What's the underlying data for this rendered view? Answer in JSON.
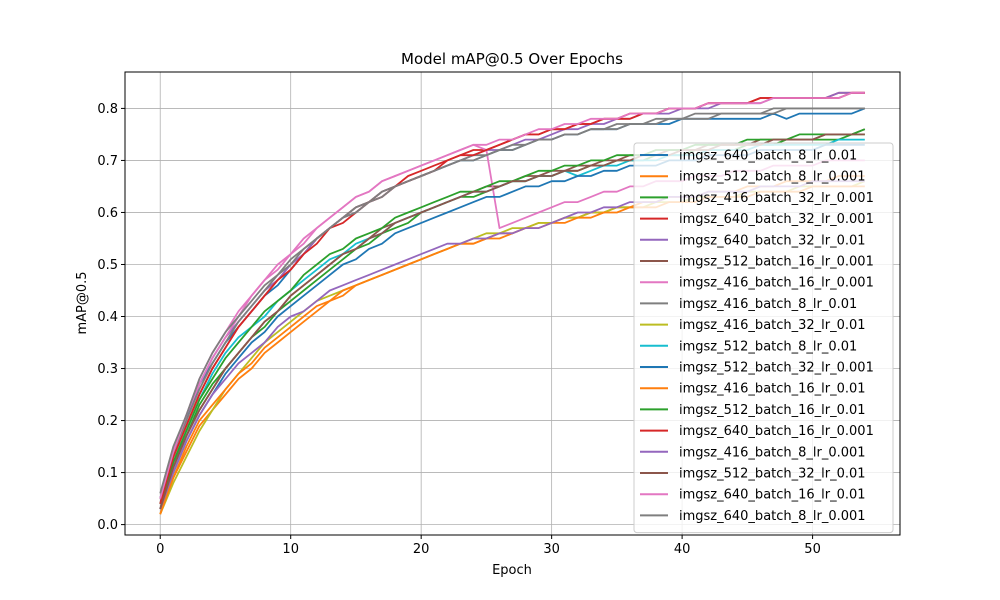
{
  "chart_data": {
    "type": "line",
    "title": "Model mAP@0.5 Over Epochs",
    "xlabel": "Epoch",
    "ylabel": "mAP@0.5",
    "xlim": [
      -2.7,
      56.7
    ],
    "ylim": [
      -0.02,
      0.87
    ],
    "xticks": [
      0,
      10,
      20,
      30,
      40,
      50
    ],
    "yticks": [
      0.0,
      0.1,
      0.2,
      0.3,
      0.4,
      0.5,
      0.6,
      0.7,
      0.8
    ],
    "grid": true,
    "legend_position": "lower-right",
    "x": [
      0,
      1,
      2,
      3,
      4,
      5,
      6,
      7,
      8,
      9,
      10,
      11,
      12,
      13,
      14,
      15,
      16,
      17,
      18,
      19,
      20,
      21,
      22,
      23,
      24,
      25,
      26,
      27,
      28,
      29,
      30,
      31,
      32,
      33,
      34,
      35,
      36,
      37,
      38,
      39,
      40,
      41,
      42,
      43,
      44,
      45,
      46,
      47,
      48,
      49,
      50,
      51,
      52,
      53,
      54
    ],
    "series": [
      {
        "name": "imgsz_640_batch_8_lr_0.01",
        "color": "#1f77b4",
        "values": [
          0.05,
          0.14,
          0.2,
          0.27,
          0.31,
          0.35,
          0.38,
          0.41,
          0.44,
          0.46,
          0.49,
          0.52,
          0.55,
          0.57,
          0.59,
          0.61,
          0.62,
          0.64,
          0.65,
          0.66,
          0.67,
          0.68,
          0.69,
          0.7,
          0.7,
          0.71,
          0.72,
          0.72,
          0.73,
          0.74,
          0.74,
          0.75,
          0.75,
          0.76,
          0.76,
          0.76,
          0.77,
          0.77,
          0.77,
          0.77,
          0.78,
          0.78,
          0.78,
          0.78,
          0.78,
          0.78,
          0.78,
          0.79,
          0.78,
          0.79,
          0.79,
          0.79,
          0.79,
          0.79,
          0.8
        ]
      },
      {
        "name": "imgsz_512_batch_8_lr_0.001",
        "color": "#ff7f0e",
        "values": [
          0.02,
          0.09,
          0.14,
          0.19,
          0.22,
          0.25,
          0.28,
          0.3,
          0.33,
          0.35,
          0.37,
          0.39,
          0.41,
          0.43,
          0.44,
          0.46,
          0.47,
          0.48,
          0.49,
          0.5,
          0.51,
          0.52,
          0.53,
          0.54,
          0.54,
          0.55,
          0.56,
          0.56,
          0.57,
          0.58,
          0.58,
          0.59,
          0.59,
          0.6,
          0.6,
          0.61,
          0.61,
          0.62,
          0.62,
          0.63,
          0.63,
          0.63,
          0.64,
          0.64,
          0.64,
          0.65,
          0.65,
          0.65,
          0.66,
          0.66,
          0.66,
          0.66,
          0.67,
          0.67,
          0.67
        ]
      },
      {
        "name": "imgsz_416_batch_32_lr_0.001",
        "color": "#2ca02c",
        "values": [
          0.03,
          0.11,
          0.17,
          0.23,
          0.27,
          0.3,
          0.33,
          0.36,
          0.38,
          0.41,
          0.43,
          0.45,
          0.47,
          0.49,
          0.51,
          0.53,
          0.54,
          0.56,
          0.57,
          0.58,
          0.6,
          0.61,
          0.62,
          0.63,
          0.63,
          0.64,
          0.65,
          0.66,
          0.66,
          0.67,
          0.67,
          0.68,
          0.68,
          0.69,
          0.69,
          0.7,
          0.7,
          0.7,
          0.71,
          0.71,
          0.71,
          0.72,
          0.72,
          0.72,
          0.72,
          0.73,
          0.73,
          0.73,
          0.74,
          0.74,
          0.74,
          0.74,
          0.74,
          0.75,
          0.75
        ]
      },
      {
        "name": "imgsz_640_batch_32_lr_0.001",
        "color": "#d62728",
        "values": [
          0.04,
          0.13,
          0.19,
          0.25,
          0.3,
          0.34,
          0.38,
          0.41,
          0.44,
          0.47,
          0.49,
          0.52,
          0.55,
          0.57,
          0.59,
          0.61,
          0.62,
          0.64,
          0.65,
          0.67,
          0.68,
          0.69,
          0.7,
          0.71,
          0.72,
          0.72,
          0.73,
          0.74,
          0.75,
          0.75,
          0.76,
          0.76,
          0.77,
          0.77,
          0.78,
          0.78,
          0.79,
          0.79,
          0.79,
          0.8,
          0.8,
          0.8,
          0.81,
          0.81,
          0.81,
          0.81,
          0.82,
          0.82,
          0.82,
          0.82,
          0.82,
          0.82,
          0.83,
          0.83,
          0.83
        ]
      },
      {
        "name": "imgsz_640_batch_32_lr_0.01",
        "color": "#9467bd",
        "values": [
          0.05,
          0.14,
          0.21,
          0.27,
          0.32,
          0.36,
          0.39,
          0.42,
          0.45,
          0.47,
          0.5,
          0.52,
          0.55,
          0.57,
          0.59,
          0.6,
          0.62,
          0.63,
          0.65,
          0.66,
          0.67,
          0.68,
          0.69,
          0.7,
          0.71,
          0.72,
          0.72,
          0.73,
          0.74,
          0.74,
          0.75,
          0.76,
          0.76,
          0.77,
          0.77,
          0.78,
          0.78,
          0.79,
          0.79,
          0.79,
          0.8,
          0.8,
          0.8,
          0.81,
          0.81,
          0.81,
          0.81,
          0.82,
          0.82,
          0.82,
          0.82,
          0.82,
          0.83,
          0.83,
          0.83
        ]
      },
      {
        "name": "imgsz_512_batch_16_lr_0.001",
        "color": "#8c564b",
        "values": [
          0.03,
          0.12,
          0.17,
          0.22,
          0.26,
          0.3,
          0.33,
          0.36,
          0.39,
          0.41,
          0.44,
          0.46,
          0.48,
          0.5,
          0.52,
          0.53,
          0.55,
          0.57,
          0.58,
          0.59,
          0.6,
          0.61,
          0.62,
          0.63,
          0.64,
          0.65,
          0.65,
          0.66,
          0.67,
          0.67,
          0.68,
          0.68,
          0.69,
          0.69,
          0.7,
          0.7,
          0.71,
          0.71,
          0.71,
          0.72,
          0.72,
          0.72,
          0.73,
          0.73,
          0.73,
          0.73,
          0.74,
          0.74,
          0.74,
          0.74,
          0.74,
          0.75,
          0.75,
          0.75,
          0.76
        ]
      },
      {
        "name": "imgsz_416_batch_16_lr_0.001",
        "color": "#e377c2",
        "values": [
          0.05,
          0.14,
          0.21,
          0.27,
          0.32,
          0.36,
          0.4,
          0.44,
          0.47,
          0.49,
          0.52,
          0.54,
          0.57,
          0.59,
          0.61,
          0.63,
          0.64,
          0.66,
          0.67,
          0.68,
          0.69,
          0.7,
          0.71,
          0.72,
          0.73,
          0.72,
          0.57,
          0.58,
          0.59,
          0.6,
          0.61,
          0.62,
          0.62,
          0.63,
          0.64,
          0.64,
          0.65,
          0.65,
          0.66,
          0.66,
          0.66,
          0.67,
          0.67,
          0.67,
          0.68,
          0.68,
          0.68,
          0.69,
          0.69,
          0.69,
          0.69,
          0.7,
          0.7,
          0.7,
          0.7
        ]
      },
      {
        "name": "imgsz_416_batch_8_lr_0.01",
        "color": "#7f7f7f",
        "values": [
          0.05,
          0.14,
          0.2,
          0.26,
          0.31,
          0.35,
          0.39,
          0.42,
          0.45,
          0.48,
          0.5,
          0.53,
          0.55,
          0.57,
          0.59,
          0.61,
          0.62,
          0.64,
          0.65,
          0.66,
          0.67,
          0.68,
          0.69,
          0.7,
          0.71,
          0.71,
          0.72,
          0.73,
          0.73,
          0.74,
          0.74,
          0.75,
          0.75,
          0.76,
          0.76,
          0.77,
          0.77,
          0.77,
          0.78,
          0.78,
          0.78,
          0.79,
          0.79,
          0.79,
          0.79,
          0.79,
          0.79,
          0.8,
          0.8,
          0.8,
          0.8,
          0.8,
          0.8,
          0.8,
          0.8
        ]
      },
      {
        "name": "imgsz_416_batch_32_lr_0.01",
        "color": "#bcbd22",
        "values": [
          0.02,
          0.08,
          0.13,
          0.18,
          0.22,
          0.26,
          0.29,
          0.32,
          0.35,
          0.37,
          0.39,
          0.41,
          0.43,
          0.44,
          0.45,
          0.46,
          0.47,
          0.48,
          0.49,
          0.5,
          0.51,
          0.52,
          0.53,
          0.54,
          0.55,
          0.56,
          0.56,
          0.57,
          0.57,
          0.58,
          0.58,
          0.59,
          0.59,
          0.6,
          0.6,
          0.61,
          0.61,
          0.61,
          0.62,
          0.62,
          0.62,
          0.63,
          0.63,
          0.63,
          0.63,
          0.64,
          0.64,
          0.64,
          0.64,
          0.65,
          0.65,
          0.65,
          0.65,
          0.65,
          0.66
        ]
      },
      {
        "name": "imgsz_512_batch_8_lr_0.01",
        "color": "#17becf",
        "values": [
          0.04,
          0.12,
          0.18,
          0.24,
          0.29,
          0.33,
          0.36,
          0.38,
          0.4,
          0.43,
          0.45,
          0.47,
          0.49,
          0.51,
          0.52,
          0.54,
          0.55,
          0.56,
          0.58,
          0.59,
          0.6,
          0.61,
          0.62,
          0.63,
          0.64,
          0.64,
          0.65,
          0.66,
          0.66,
          0.67,
          0.67,
          0.68,
          0.67,
          0.68,
          0.69,
          0.69,
          0.7,
          0.7,
          0.7,
          0.71,
          0.71,
          0.71,
          0.72,
          0.72,
          0.72,
          0.72,
          0.73,
          0.73,
          0.73,
          0.73,
          0.73,
          0.73,
          0.74,
          0.74,
          0.74
        ]
      },
      {
        "name": "imgsz_512_batch_32_lr_0.001",
        "color": "#1f77b4",
        "values": [
          0.03,
          0.1,
          0.16,
          0.21,
          0.25,
          0.29,
          0.32,
          0.35,
          0.37,
          0.4,
          0.42,
          0.44,
          0.46,
          0.48,
          0.5,
          0.51,
          0.53,
          0.54,
          0.56,
          0.57,
          0.58,
          0.59,
          0.6,
          0.61,
          0.62,
          0.63,
          0.63,
          0.64,
          0.65,
          0.65,
          0.66,
          0.66,
          0.67,
          0.67,
          0.68,
          0.68,
          0.69,
          0.69,
          0.69,
          0.7,
          0.7,
          0.7,
          0.71,
          0.71,
          0.71,
          0.71,
          0.72,
          0.72,
          0.72,
          0.72,
          0.72,
          0.73,
          0.73,
          0.73,
          0.73
        ]
      },
      {
        "name": "imgsz_416_batch_16_lr_0.01",
        "color": "#ff7f0e",
        "values": [
          0.02,
          0.09,
          0.15,
          0.2,
          0.23,
          0.26,
          0.29,
          0.31,
          0.34,
          0.36,
          0.38,
          0.4,
          0.42,
          0.43,
          0.45,
          0.46,
          0.47,
          0.48,
          0.49,
          0.5,
          0.51,
          0.52,
          0.53,
          0.54,
          0.54,
          0.55,
          0.55,
          0.56,
          0.57,
          0.57,
          0.58,
          0.58,
          0.59,
          0.59,
          0.6,
          0.6,
          0.61,
          0.61,
          0.61,
          0.62,
          0.62,
          0.62,
          0.63,
          0.63,
          0.63,
          0.63,
          0.64,
          0.64,
          0.64,
          0.64,
          0.65,
          0.65,
          0.65,
          0.65,
          0.65
        ]
      },
      {
        "name": "imgsz_512_batch_16_lr_0.01",
        "color": "#2ca02c",
        "values": [
          0.04,
          0.12,
          0.18,
          0.24,
          0.28,
          0.32,
          0.35,
          0.38,
          0.41,
          0.43,
          0.45,
          0.48,
          0.5,
          0.52,
          0.53,
          0.55,
          0.56,
          0.57,
          0.59,
          0.6,
          0.61,
          0.62,
          0.63,
          0.64,
          0.64,
          0.65,
          0.66,
          0.66,
          0.67,
          0.68,
          0.68,
          0.69,
          0.69,
          0.7,
          0.7,
          0.71,
          0.71,
          0.71,
          0.72,
          0.72,
          0.72,
          0.73,
          0.73,
          0.73,
          0.73,
          0.74,
          0.74,
          0.74,
          0.74,
          0.75,
          0.75,
          0.75,
          0.75,
          0.75,
          0.76
        ]
      },
      {
        "name": "imgsz_640_batch_16_lr_0.001",
        "color": "#d62728",
        "values": [
          0.04,
          0.13,
          0.19,
          0.25,
          0.3,
          0.34,
          0.38,
          0.41,
          0.44,
          0.47,
          0.49,
          0.52,
          0.54,
          0.57,
          0.58,
          0.6,
          0.62,
          0.63,
          0.65,
          0.66,
          0.67,
          0.68,
          0.7,
          0.71,
          0.71,
          0.72,
          0.73,
          0.74,
          0.75,
          0.75,
          0.76,
          0.76,
          0.77,
          0.77,
          0.78,
          0.78,
          0.78,
          0.79,
          0.79,
          0.8,
          0.8,
          0.8,
          0.81,
          0.81,
          0.81,
          0.81,
          0.82,
          0.82,
          0.82,
          0.82,
          0.82,
          0.82,
          0.82,
          0.83,
          0.83
        ]
      },
      {
        "name": "imgsz_416_batch_8_lr_0.001",
        "color": "#9467bd",
        "values": [
          0.03,
          0.1,
          0.16,
          0.21,
          0.25,
          0.28,
          0.31,
          0.33,
          0.35,
          0.38,
          0.4,
          0.41,
          0.43,
          0.45,
          0.46,
          0.47,
          0.48,
          0.49,
          0.5,
          0.51,
          0.52,
          0.53,
          0.54,
          0.54,
          0.55,
          0.55,
          0.56,
          0.56,
          0.57,
          0.57,
          0.58,
          0.59,
          0.6,
          0.6,
          0.61,
          0.61,
          0.62,
          0.62,
          0.62,
          0.63,
          0.63,
          0.63,
          0.64,
          0.64,
          0.64,
          0.64,
          0.65,
          0.65,
          0.65,
          0.65,
          0.66,
          0.66,
          0.66,
          0.66,
          0.66
        ]
      },
      {
        "name": "imgsz_512_batch_32_lr_0.01",
        "color": "#8c564b",
        "values": [
          0.03,
          0.11,
          0.17,
          0.22,
          0.26,
          0.3,
          0.33,
          0.36,
          0.39,
          0.41,
          0.44,
          0.46,
          0.48,
          0.5,
          0.52,
          0.53,
          0.55,
          0.56,
          0.58,
          0.59,
          0.6,
          0.61,
          0.62,
          0.63,
          0.64,
          0.64,
          0.65,
          0.66,
          0.66,
          0.67,
          0.67,
          0.68,
          0.68,
          0.69,
          0.69,
          0.7,
          0.7,
          0.71,
          0.71,
          0.71,
          0.72,
          0.72,
          0.72,
          0.73,
          0.73,
          0.73,
          0.73,
          0.74,
          0.74,
          0.74,
          0.74,
          0.75,
          0.75,
          0.75,
          0.75
        ]
      },
      {
        "name": "imgsz_640_batch_16_lr_0.01",
        "color": "#e377c2",
        "values": [
          0.05,
          0.14,
          0.21,
          0.28,
          0.33,
          0.37,
          0.41,
          0.44,
          0.47,
          0.5,
          0.52,
          0.55,
          0.57,
          0.59,
          0.61,
          0.63,
          0.64,
          0.66,
          0.67,
          0.68,
          0.69,
          0.7,
          0.71,
          0.72,
          0.73,
          0.73,
          0.74,
          0.74,
          0.75,
          0.76,
          0.76,
          0.77,
          0.77,
          0.78,
          0.78,
          0.78,
          0.79,
          0.79,
          0.79,
          0.8,
          0.8,
          0.8,
          0.81,
          0.81,
          0.81,
          0.81,
          0.81,
          0.82,
          0.82,
          0.82,
          0.82,
          0.82,
          0.82,
          0.83,
          0.83
        ]
      },
      {
        "name": "imgsz_640_batch_8_lr_0.001",
        "color": "#7f7f7f",
        "values": [
          0.06,
          0.15,
          0.21,
          0.28,
          0.33,
          0.37,
          0.4,
          0.43,
          0.46,
          0.48,
          0.51,
          0.53,
          0.55,
          0.57,
          0.59,
          0.6,
          0.62,
          0.63,
          0.65,
          0.66,
          0.67,
          0.68,
          0.69,
          0.7,
          0.7,
          0.71,
          0.72,
          0.72,
          0.73,
          0.74,
          0.74,
          0.75,
          0.75,
          0.76,
          0.76,
          0.76,
          0.77,
          0.77,
          0.77,
          0.78,
          0.78,
          0.78,
          0.78,
          0.79,
          0.79,
          0.79,
          0.79,
          0.79,
          0.8,
          0.8,
          0.8,
          0.8,
          0.8,
          0.8,
          0.8
        ]
      }
    ]
  }
}
